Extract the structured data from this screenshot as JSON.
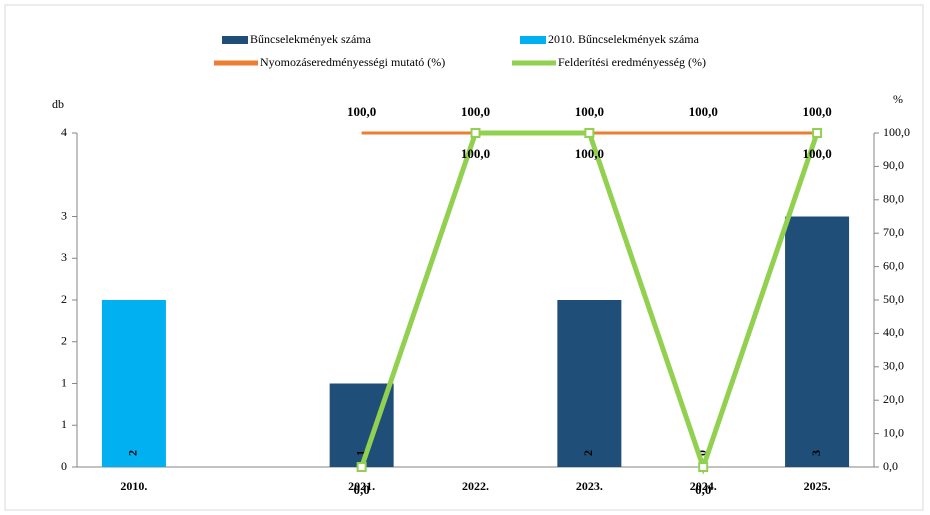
{
  "chart_data": {
    "type": "bar",
    "categories": [
      "2010.",
      null,
      "2021.",
      "2022.",
      "2023.",
      "2024.",
      "2025."
    ],
    "y_label": "db",
    "y2_label": "%",
    "ylim": [
      0,
      4
    ],
    "yticks": [
      0,
      {
        "value": 0.5,
        "label": "1"
      },
      1,
      {
        "value": 1.5,
        "label": "2"
      },
      2,
      {
        "value": 2.5,
        "label": "3"
      },
      3,
      4
    ],
    "y2lim": [
      0,
      100
    ],
    "y2ticks": [
      {
        "value": 0,
        "label": "0,0"
      },
      {
        "value": 10,
        "label": "10,0"
      },
      {
        "value": 20,
        "label": "20,0"
      },
      {
        "value": 30,
        "label": "30,0"
      },
      {
        "value": 40,
        "label": "40,0"
      },
      {
        "value": 50,
        "label": "50,0"
      },
      {
        "value": 60,
        "label": "60,0"
      },
      {
        "value": 70,
        "label": "70,0"
      },
      {
        "value": 80,
        "label": "80,0"
      },
      {
        "value": 90,
        "label": "90,0"
      },
      {
        "value": 100,
        "label": "100,0"
      }
    ],
    "series": [
      {
        "name": "Bűncselekmények száma",
        "kind": "bar",
        "color": "#1f4e79",
        "values": [
          null,
          null,
          1,
          null,
          2,
          0,
          3
        ]
      },
      {
        "name": "2010. Bűncselekmények száma",
        "kind": "bar",
        "color": "#00b0f0",
        "values": [
          2,
          null,
          null,
          null,
          null,
          null,
          null
        ]
      },
      {
        "name": "Nyomozáseredményességi mutató (%)",
        "kind": "line",
        "axis": "y2",
        "color": "#ed7d31",
        "values": [
          null,
          null,
          100,
          100,
          100,
          100,
          100
        ],
        "value_labels": [
          null,
          null,
          "100,0",
          "100,0",
          "100,0",
          "100,0",
          "100,0"
        ]
      },
      {
        "name": "Felderítési eredményesség (%)",
        "kind": "line",
        "axis": "y2",
        "color": "#92d050",
        "values": [
          null,
          null,
          0,
          100,
          100,
          0,
          100
        ],
        "value_labels": [
          null,
          null,
          "0,0",
          "100,0",
          "100,0",
          "0,0",
          "100,0"
        ]
      }
    ]
  }
}
